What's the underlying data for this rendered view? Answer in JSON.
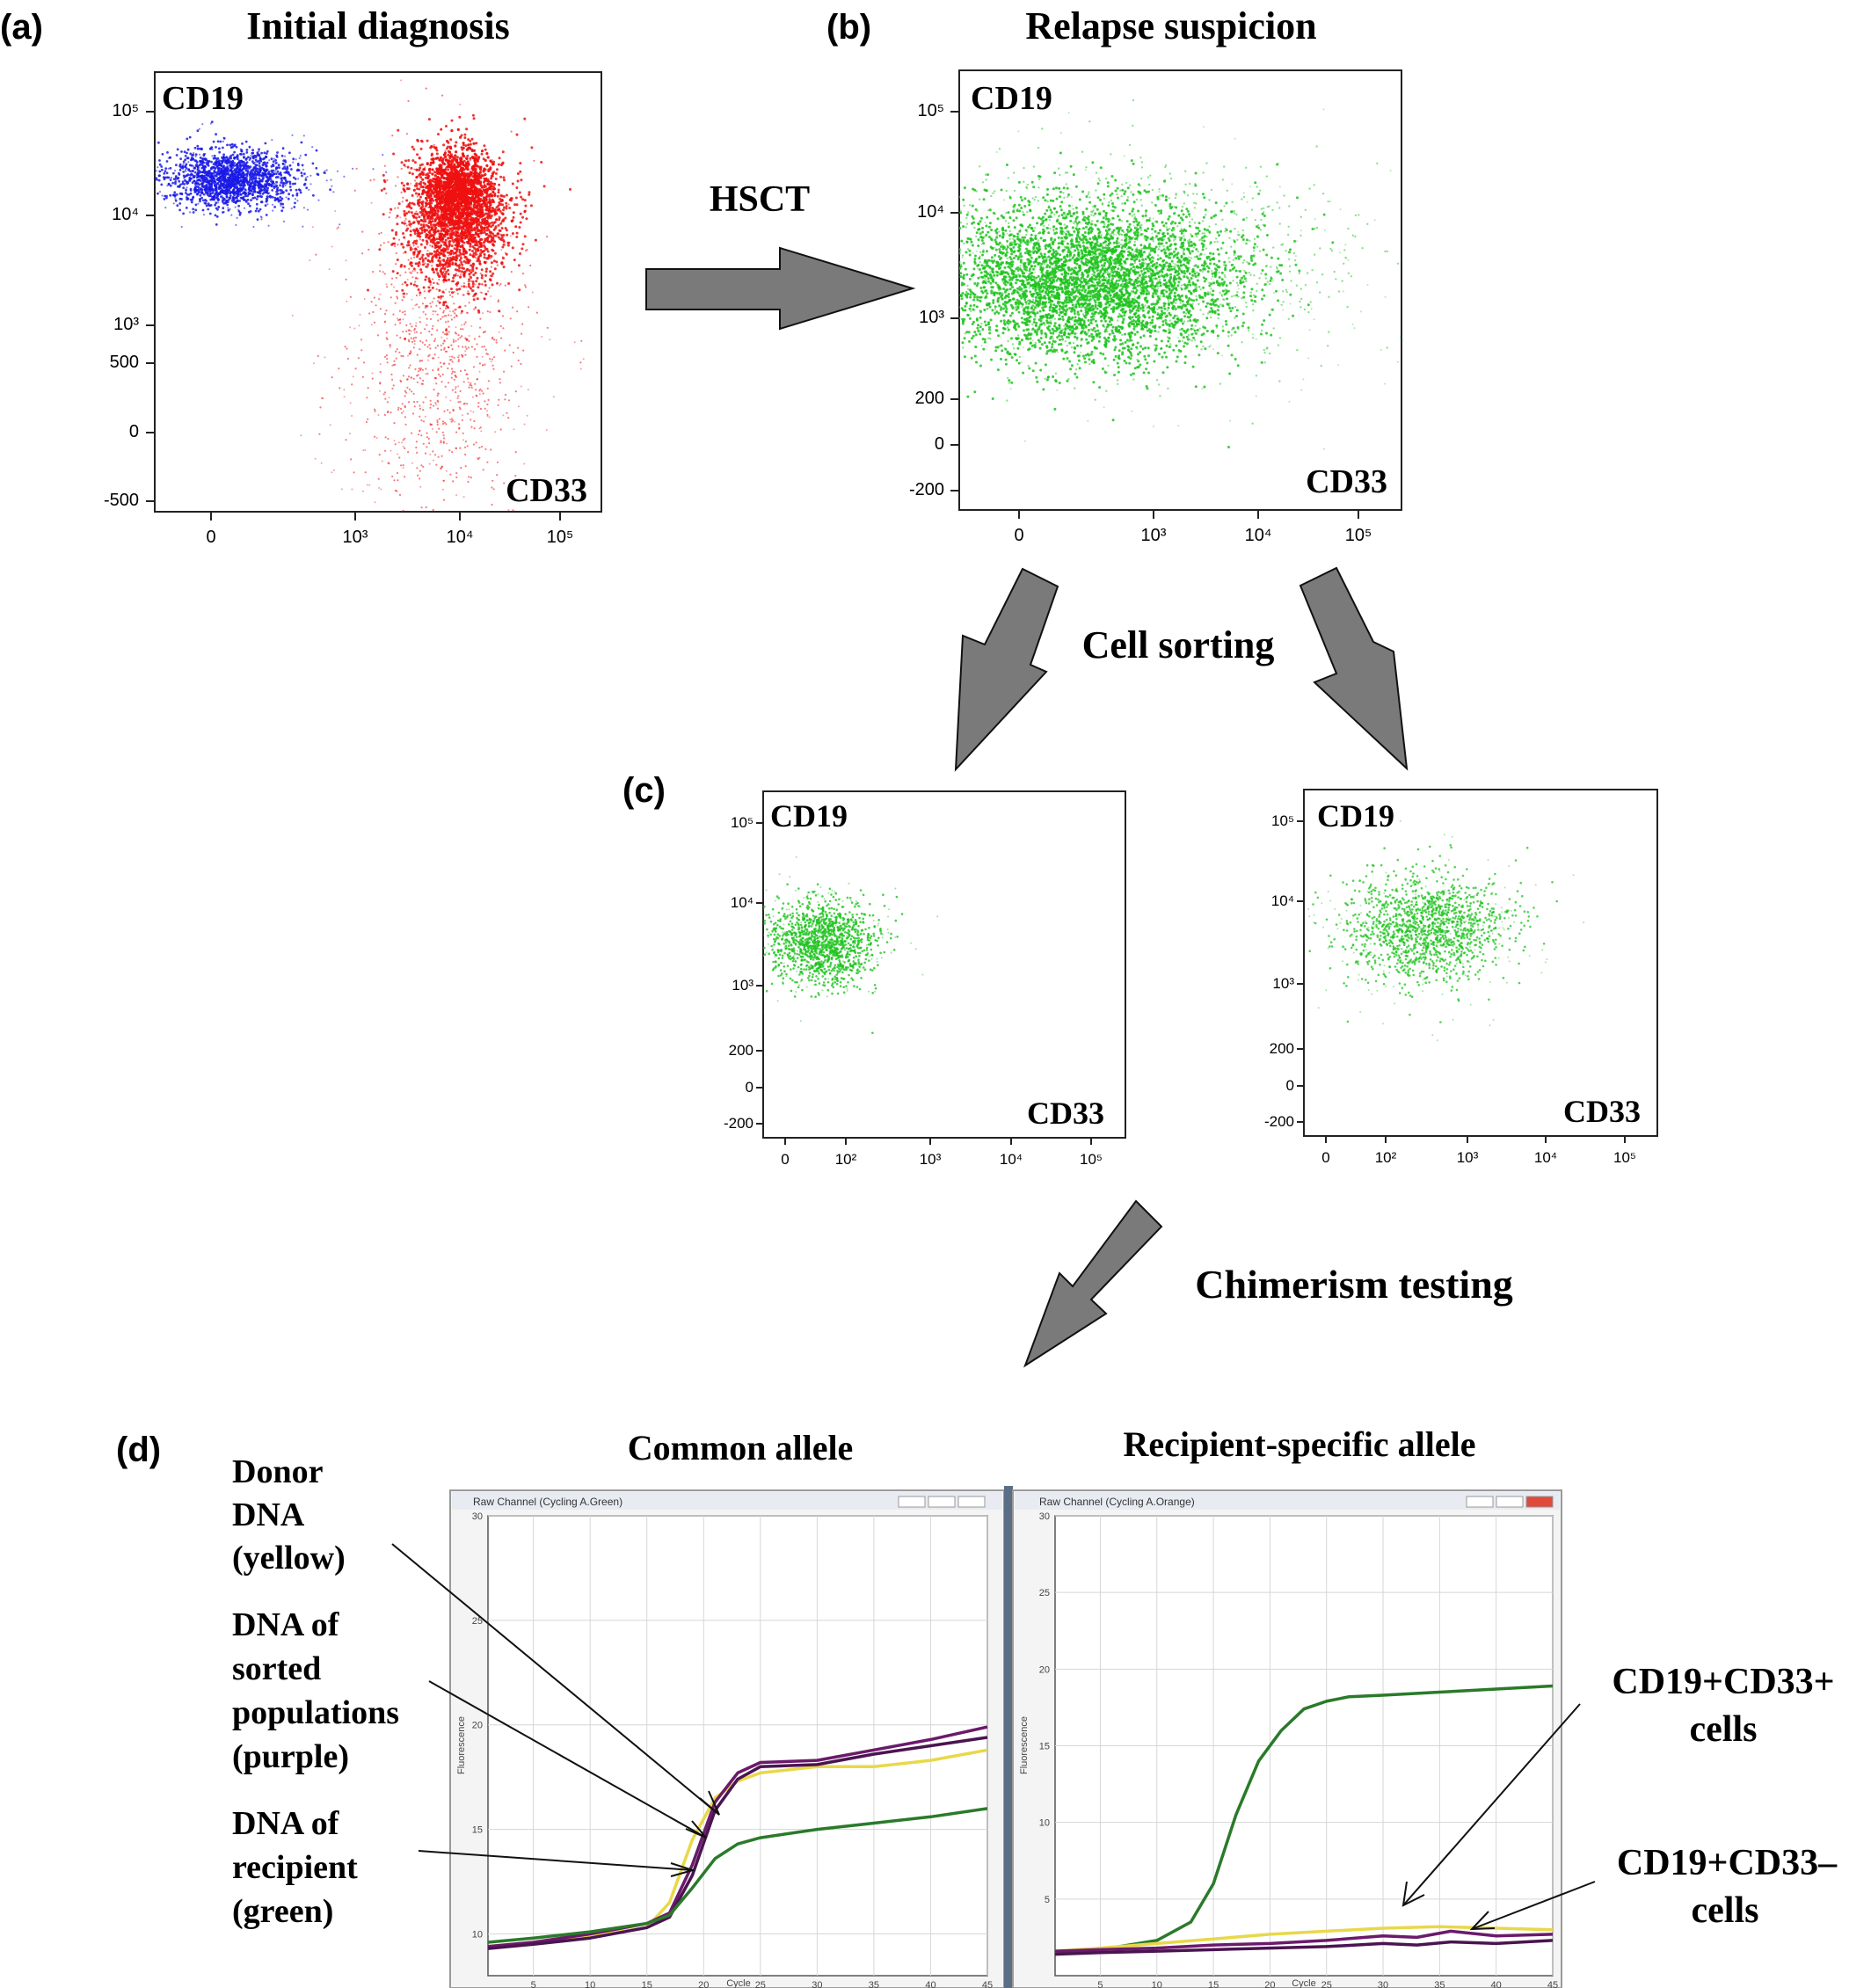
{
  "panels": {
    "a": {
      "letter": "(a)",
      "title": "Initial diagnosis",
      "y_label": "CD19",
      "x_label": "CD33",
      "y_ticks": [
        "10⁵",
        "10⁴",
        "10³",
        "500",
        "0",
        "-500"
      ],
      "x_ticks": [
        "0",
        "10³",
        "10⁴",
        "10⁵"
      ]
    },
    "b": {
      "letter": "(b)",
      "title": "Relapse suspicion",
      "y_label": "CD19",
      "x_label": "CD33",
      "y_ticks": [
        "10⁵",
        "10⁴",
        "10³",
        "200",
        "0",
        "-200"
      ],
      "x_ticks": [
        "0",
        "10³",
        "10⁴",
        "10⁵"
      ]
    },
    "c": {
      "letter": "(c)",
      "left": {
        "y_label": "CD19",
        "x_label": "CD33",
        "y_ticks": [
          "10⁵",
          "10⁴",
          "10³",
          "200",
          "0",
          "-200"
        ],
        "x_ticks": [
          "0",
          "10²",
          "10³",
          "10⁴",
          "10⁵"
        ]
      },
      "right": {
        "y_label": "CD19",
        "x_label": "CD33",
        "y_ticks": [
          "10⁵",
          "10⁴",
          "10³",
          "200",
          "0",
          "-200"
        ],
        "x_ticks": [
          "0",
          "10²",
          "10³",
          "10⁴",
          "10⁵"
        ]
      }
    },
    "d": {
      "letter": "(d)",
      "left_title": "Common allele",
      "right_title": "Recipient-specific allele",
      "left_window": "Raw Channel (Cycling A.Green)",
      "right_window": "Raw Channel (Cycling A.Orange)",
      "y_axis_name": "Fluorescence",
      "x_axis_name": "Cycle",
      "left_y_ticks": [
        "30",
        "25",
        "20",
        "15",
        "10"
      ],
      "right_y_ticks": [
        "30",
        "25",
        "20",
        "15",
        "10",
        "5"
      ],
      "x_ticks": [
        "5",
        "10",
        "15",
        "20",
        "25",
        "30",
        "35",
        "40",
        "45"
      ]
    }
  },
  "arrows": {
    "hsct": "HSCT",
    "sorting": "Cell sorting",
    "chimerism": "Chimerism testing"
  },
  "annotations": {
    "donor": [
      "Donor",
      "DNA",
      "(yellow)"
    ],
    "sorted": [
      "DNA of",
      "sorted",
      "populations",
      "(purple)"
    ],
    "recipient": [
      "DNA of",
      "recipient",
      "(green)"
    ],
    "pos": [
      "CD19+CD33+",
      "cells"
    ],
    "neg": [
      "CD19+CD33–",
      "cells"
    ]
  },
  "colors": {
    "blue": "#1a1ae6",
    "red": "#ee1111",
    "green": "#1fc31f",
    "arrow": "#7a7a7a",
    "yellow": "#f2e64d",
    "purple": "#6b1a6b",
    "dark_green": "#2a7a2a"
  },
  "chart_data": [
    {
      "type": "line",
      "title": "Common allele",
      "xlabel": "Cycle",
      "ylabel": "Fluorescence",
      "xlim": [
        1,
        45
      ],
      "ylim": [
        8,
        30
      ],
      "series": [
        {
          "name": "Donor DNA (yellow)",
          "color": "#e8d84a",
          "x": [
            1,
            5,
            10,
            15,
            17,
            19,
            21,
            23,
            25,
            30,
            35,
            40,
            45
          ],
          "y": [
            9.4,
            9.6,
            9.9,
            10.3,
            11.5,
            14.5,
            16.5,
            17.3,
            17.7,
            18.0,
            18.0,
            18.3,
            18.8
          ]
        },
        {
          "name": "DNA of sorted populations (purple)",
          "color": "#6b1a6b",
          "x": [
            1,
            5,
            10,
            15,
            17,
            19,
            21,
            23,
            25,
            30,
            35,
            40,
            45
          ],
          "y": [
            9.4,
            9.6,
            10.0,
            10.5,
            11.0,
            13.3,
            16.3,
            17.7,
            18.2,
            18.3,
            18.8,
            19.3,
            19.9
          ]
        },
        {
          "name": "DNA of sorted populations (purple) 2",
          "color": "#4a1450",
          "x": [
            1,
            5,
            10,
            15,
            17,
            19,
            21,
            23,
            25,
            30,
            35,
            40,
            45
          ],
          "y": [
            9.3,
            9.5,
            9.8,
            10.3,
            10.8,
            12.8,
            15.9,
            17.4,
            18.0,
            18.1,
            18.6,
            19.0,
            19.4
          ]
        },
        {
          "name": "DNA of recipient (green)",
          "color": "#2a7a2a",
          "x": [
            1,
            5,
            10,
            15,
            17,
            19,
            21,
            23,
            25,
            30,
            35,
            40,
            45
          ],
          "y": [
            9.6,
            9.8,
            10.1,
            10.5,
            10.9,
            12.2,
            13.6,
            14.3,
            14.6,
            15.0,
            15.3,
            15.6,
            16.0
          ]
        }
      ]
    },
    {
      "type": "line",
      "title": "Recipient-specific allele",
      "xlabel": "Cycle",
      "ylabel": "Fluorescence",
      "xlim": [
        1,
        45
      ],
      "ylim": [
        0,
        30
      ],
      "series": [
        {
          "name": "DNA of recipient (green)",
          "color": "#2a7a2a",
          "x": [
            1,
            5,
            10,
            13,
            15,
            17,
            19,
            21,
            23,
            25,
            27,
            30,
            35,
            40,
            45
          ],
          "y": [
            1.5,
            1.7,
            2.3,
            3.5,
            6.0,
            10.5,
            14.0,
            16.0,
            17.4,
            17.9,
            18.2,
            18.3,
            18.5,
            18.7,
            18.9
          ]
        },
        {
          "name": "Donor DNA (yellow)",
          "color": "#e8d84a",
          "x": [
            1,
            5,
            10,
            15,
            20,
            25,
            30,
            35,
            40,
            45
          ],
          "y": [
            1.6,
            1.8,
            2.1,
            2.4,
            2.7,
            2.9,
            3.1,
            3.2,
            3.1,
            3.0
          ]
        },
        {
          "name": "CD19+CD33+ cells",
          "color": "#6b1a6b",
          "x": [
            1,
            5,
            10,
            15,
            20,
            25,
            30,
            33,
            36,
            40,
            45
          ],
          "y": [
            1.6,
            1.7,
            1.8,
            2.0,
            2.1,
            2.3,
            2.6,
            2.5,
            2.9,
            2.6,
            2.7
          ]
        },
        {
          "name": "CD19+CD33– cells",
          "color": "#4a1450",
          "x": [
            1,
            5,
            10,
            15,
            20,
            25,
            30,
            33,
            36,
            40,
            45
          ],
          "y": [
            1.4,
            1.5,
            1.6,
            1.7,
            1.8,
            1.9,
            2.1,
            2.0,
            2.2,
            2.1,
            2.3
          ]
        }
      ]
    }
  ]
}
